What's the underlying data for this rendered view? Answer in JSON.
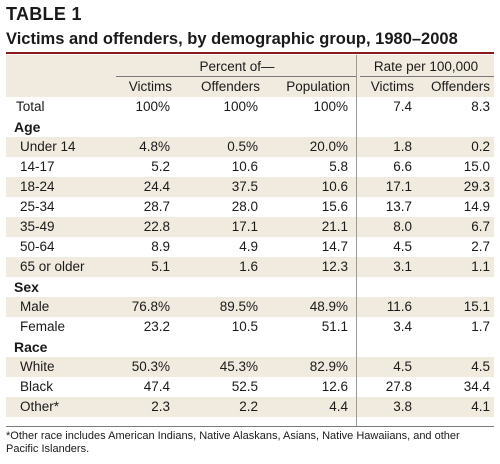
{
  "table_label": "TABLE 1",
  "title": "Victims and offenders, by demographic group, 1980–2008",
  "group_headers": {
    "percent": "Percent of—",
    "rate": "Rate per 100,000"
  },
  "columns": [
    "Victims",
    "Offenders",
    "Population",
    "Victims",
    "Offenders"
  ],
  "rows": [
    {
      "label": "Total",
      "values": [
        "100%",
        "100%",
        "100%",
        "7.4",
        "8.3"
      ]
    },
    {
      "label": "Age",
      "section": true
    },
    {
      "label": "Under 14",
      "values": [
        "4.8%",
        "0.5%",
        "20.0%",
        "1.8",
        "0.2"
      ]
    },
    {
      "label": "14-17",
      "values": [
        "5.2",
        "10.6",
        "5.8",
        "6.6",
        "15.0"
      ]
    },
    {
      "label": "18-24",
      "values": [
        "24.4",
        "37.5",
        "10.6",
        "17.1",
        "29.3"
      ]
    },
    {
      "label": "25-34",
      "values": [
        "28.7",
        "28.0",
        "15.6",
        "13.7",
        "14.9"
      ]
    },
    {
      "label": "35-49",
      "values": [
        "22.8",
        "17.1",
        "21.1",
        "8.0",
        "6.7"
      ]
    },
    {
      "label": "50-64",
      "values": [
        "8.9",
        "4.9",
        "14.7",
        "4.5",
        "2.7"
      ]
    },
    {
      "label": "65 or older",
      "values": [
        "5.1",
        "1.6",
        "12.3",
        "3.1",
        "1.1"
      ]
    },
    {
      "label": "Sex",
      "section": true
    },
    {
      "label": "Male",
      "values": [
        "76.8%",
        "89.5%",
        "48.9%",
        "11.6",
        "15.1"
      ]
    },
    {
      "label": "Female",
      "values": [
        "23.2",
        "10.5",
        "51.1",
        "3.4",
        "1.7"
      ]
    },
    {
      "label": "Race",
      "section": true
    },
    {
      "label": "White",
      "values": [
        "50.3%",
        "45.3%",
        "82.9%",
        "4.5",
        "4.5"
      ]
    },
    {
      "label": "Black",
      "values": [
        "47.4",
        "52.5",
        "12.6",
        "27.8",
        "34.4"
      ]
    },
    {
      "label": "Other*",
      "values": [
        "2.3",
        "2.2",
        "4.4",
        "3.8",
        "4.1"
      ]
    }
  ],
  "footnote": "*Other race includes American Indians, Native Alaskans, Asians, Native Hawaiians, and other Pacific Islanders.",
  "colors": {
    "accent": "#8a1c1c",
    "shade": "#f1eade"
  }
}
